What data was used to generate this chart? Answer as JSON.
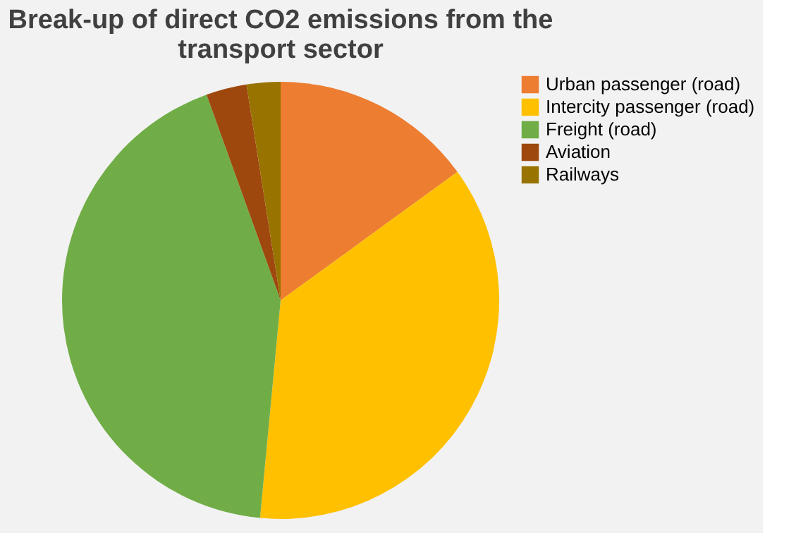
{
  "chart_data": {
    "type": "pie",
    "title": "Break-up of direct CO2 emissions from the transport sector",
    "categories": [
      "Urban passenger (road)",
      "Intercity passenger (road)",
      "Freight (road)",
      "Aviation",
      "Railways"
    ],
    "values": [
      15,
      36.5,
      43,
      3,
      2.5
    ],
    "colors": [
      "#ed7d31",
      "#ffc000",
      "#70ad47",
      "#9e480e",
      "#997300"
    ],
    "legend": "right"
  }
}
